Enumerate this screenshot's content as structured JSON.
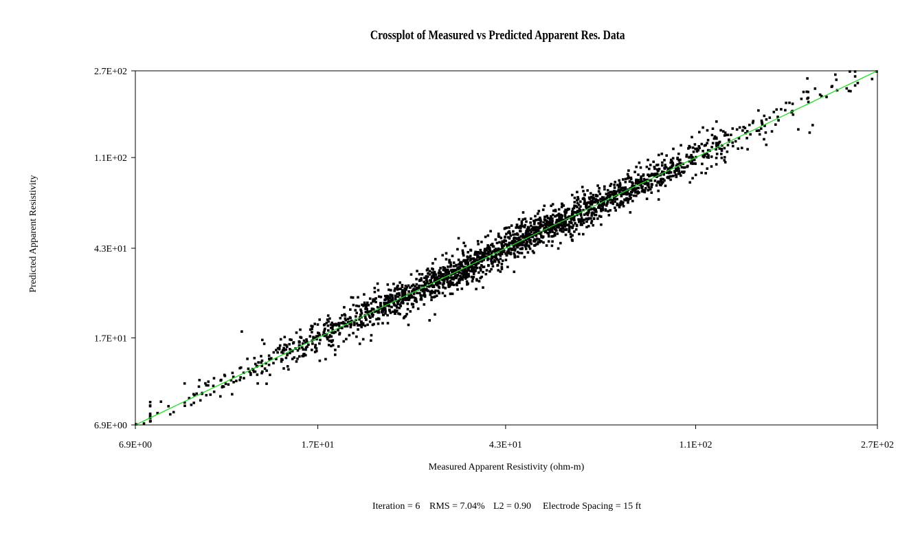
{
  "chart_data": {
    "type": "scatter",
    "title": "Crossplot of Measured vs Predicted Apparent Res. Data",
    "xlabel": "Measured Apparent Resistivity (ohm-m)",
    "ylabel": "Predicted Apparent Resistivity",
    "x_scale": "log",
    "y_scale": "log",
    "xlim": [
      6.9,
      270
    ],
    "ylim": [
      6.9,
      270
    ],
    "x_ticks": [
      6.9,
      17,
      43,
      110,
      270
    ],
    "x_tick_labels": [
      "6.9E+00",
      "1.7E+01",
      "4.3E+01",
      "1.1E+02",
      "2.7E+02"
    ],
    "y_ticks": [
      6.9,
      17,
      43,
      110,
      270
    ],
    "y_tick_labels": [
      "6.9E+00",
      "1.7E+01",
      "4.3E+01",
      "1.1E+02",
      "2.7E+02"
    ],
    "grid": false,
    "legend": "none",
    "reference_line": {
      "type": "y=x",
      "color": "#22dd22"
    },
    "series": [
      {
        "marker": "square",
        "color": "#000000",
        "approx_point_count": 2300,
        "points": [
          [
            6.9,
            6.9
          ],
          [
            7.2,
            7.0
          ],
          [
            7.7,
            7.8
          ],
          [
            8.2,
            7.7
          ],
          [
            9.0,
            9.1
          ],
          [
            9.6,
            9.6
          ],
          [
            9.8,
            10.4
          ],
          [
            10.6,
            10.2
          ],
          [
            9.9,
            10.8
          ],
          [
            11.8,
            11.2
          ],
          [
            12.2,
            11.6
          ],
          [
            12.6,
            11.6
          ],
          [
            12.9,
            12.7
          ],
          [
            13.2,
            12.1
          ],
          [
            13.4,
            13.6
          ],
          [
            14.2,
            13.3
          ],
          [
            14.3,
            14.9
          ],
          [
            15.0,
            14.8
          ],
          [
            15.3,
            13.3
          ],
          [
            16.0,
            16.2
          ],
          [
            16.5,
            15.0
          ],
          [
            17.0,
            17.3
          ],
          [
            17.6,
            17.5
          ],
          [
            18.4,
            17.9
          ],
          [
            19.1,
            19.8
          ],
          [
            20.0,
            19.0
          ],
          [
            21.0,
            21.6
          ],
          [
            22.2,
            21.9
          ],
          [
            23.0,
            22.1
          ],
          [
            24.0,
            25.6
          ],
          [
            25.5,
            25.3
          ],
          [
            26.5,
            24.2
          ],
          [
            28.0,
            28.6
          ],
          [
            29.5,
            28.9
          ],
          [
            31.0,
            30.2
          ],
          [
            33.0,
            33.8
          ],
          [
            35.0,
            33.5
          ],
          [
            37.0,
            38.3
          ],
          [
            39.5,
            38.6
          ],
          [
            42.0,
            41.2
          ],
          [
            44.5,
            46.2
          ],
          [
            47.0,
            45.7
          ],
          [
            50.0,
            49.2
          ],
          [
            53.0,
            55.4
          ],
          [
            56.0,
            54.6
          ],
          [
            60.0,
            58.1
          ],
          [
            64.0,
            66.0
          ],
          [
            68.0,
            65.5
          ],
          [
            72.0,
            74.9
          ],
          [
            77.0,
            75.4
          ],
          [
            82.0,
            79.7
          ],
          [
            88.0,
            91.3
          ],
          [
            94.0,
            92.3
          ],
          [
            100.0,
            97.2
          ],
          [
            108.0,
            110.6
          ],
          [
            115.0,
            112.2
          ],
          [
            123.0,
            126.8
          ],
          [
            132.0,
            128.4
          ],
          [
            142.0,
            144.4
          ],
          [
            152.0,
            148.4
          ],
          [
            165.0,
            167.6
          ],
          [
            178.0,
            171.5
          ],
          [
            192.0,
            195.6
          ],
          [
            210.0,
            206.0
          ],
          [
            232.0,
            225.0
          ],
          [
            245.0,
            238.0
          ],
          [
            263.0,
            248.0
          ],
          [
            270.0,
            270.0
          ]
        ]
      }
    ]
  },
  "footer": {
    "iteration": "Iteration = 6",
    "rms": "RMS = 7.04%",
    "l2": "L2 = 0.90",
    "spacing": "Electrode Spacing = 15 ft"
  }
}
